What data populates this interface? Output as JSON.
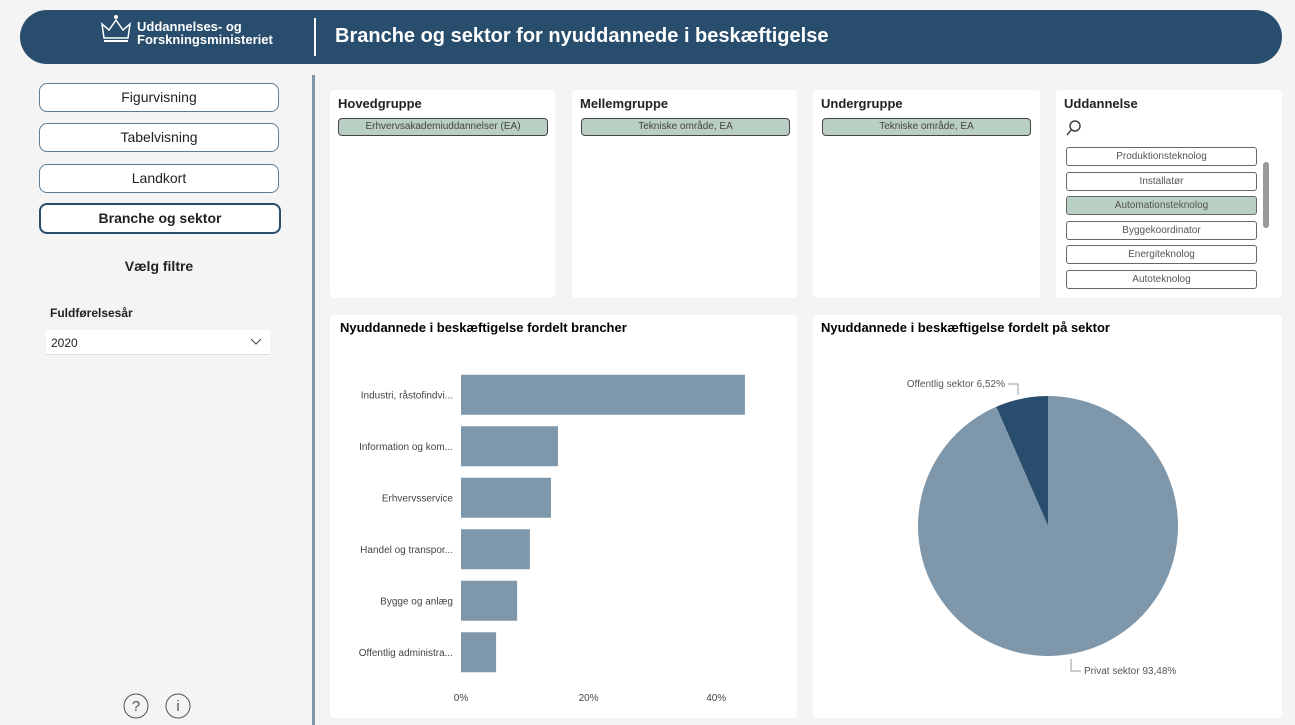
{
  "header": {
    "logo_lines": [
      "Uddannelses- og",
      "Forskningsministeriet"
    ],
    "title": "Branche og sektor for nyuddannede i beskæftigelse"
  },
  "nav": {
    "buttons": [
      "Figurvisning",
      "Tabelvisning",
      "Landkort",
      "Branche og sektor"
    ]
  },
  "filters": {
    "heading": "Vælg filtre",
    "label": "Fuldførelsesår",
    "value": "2020"
  },
  "slicers": [
    {
      "title": "Hovedgruppe",
      "selected": "Erhvervsakademiuddannelser (EA)"
    },
    {
      "title": "Mellemgruppe",
      "selected": "Tekniske område, EA"
    },
    {
      "title": "Undergruppe",
      "selected": "Tekniske område, EA"
    }
  ],
  "uddannelse": {
    "title": "Uddannelse",
    "items": [
      "Produktionsteknolog",
      "Installatør",
      "Automationsteknolog",
      "Byggekoordinator",
      "Energiteknolog",
      "Autoteknolog"
    ]
  },
  "chart_data": [
    {
      "type": "bar",
      "orientation": "horizontal",
      "title": "Nyuddannede i beskæftigelse fordelt brancher",
      "categories": [
        "Industri, råstofindvi...",
        "Information og kom...",
        "Erhvervsservice",
        "Handel og transpor...",
        "Bygge og anlæg",
        "Offentlig administra..."
      ],
      "values": [
        44.5,
        15.2,
        14.1,
        10.8,
        8.8,
        5.5
      ],
      "color": "#7f97aa",
      "xlim": [
        0,
        50
      ],
      "xticks": [
        {
          "value": 0,
          "label": "0%"
        },
        {
          "value": 20,
          "label": "20%"
        },
        {
          "value": 40,
          "label": "40%"
        }
      ]
    },
    {
      "type": "pie",
      "title": "Nyuddannede i beskæftigelse fordelt på sektor",
      "categories": [
        "Offentlig sektor",
        "Privat sektor"
      ],
      "values": [
        6.52,
        93.48
      ],
      "value_labels": [
        "6,52%",
        "93,48%"
      ],
      "colors": [
        "#284d6d",
        "#7f97aa"
      ]
    }
  ]
}
